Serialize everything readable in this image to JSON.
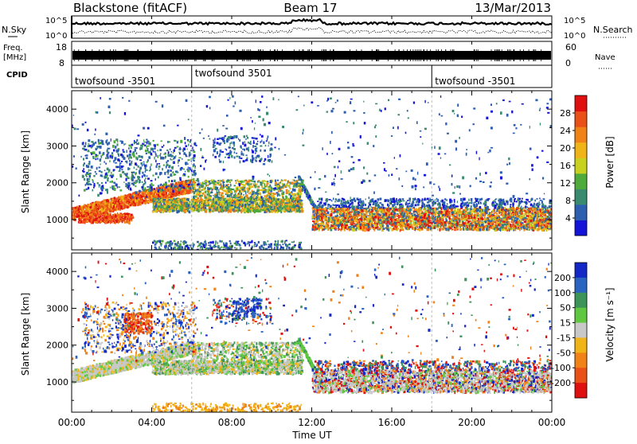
{
  "header": {
    "station": "Blackstone (fitACF)",
    "beam": "Beam 17",
    "date": "13/Mar/2013"
  },
  "strips": {
    "nsky_label": "N.Sky",
    "nsky_ticks": [
      "10^5",
      "10^0"
    ],
    "nsearch_label": "N.Search",
    "nsearch_ticks": [
      "10^5",
      "10^0"
    ],
    "freq_label": "Freq.",
    "freq_unit": "[MHz]",
    "freq_ticks": [
      "18",
      "8"
    ],
    "nave_label": "Nave",
    "nave_ticks": [
      "60",
      "0"
    ],
    "cpid_label": "CPID",
    "cpid_segments": [
      {
        "label": "twofsound -3501",
        "start_h": 0,
        "end_h": 6
      },
      {
        "label": "twofsound 3501",
        "start_h": 6,
        "end_h": 18
      },
      {
        "label": "twofsound -3501",
        "start_h": 18,
        "end_h": 24
      }
    ]
  },
  "chart_data": [
    {
      "type": "heatmap",
      "name": "power",
      "ylabel": "Slant Range [km]",
      "ylim": [
        180,
        4500
      ],
      "yticks": [
        "1000",
        "2000",
        "3000",
        "4000"
      ],
      "colorbar_label": "Power [dB]",
      "colorbar_ticks": [
        "4",
        "8",
        "12",
        "16",
        "20",
        "24",
        "28"
      ],
      "colorbar_colors": [
        "#1414d8",
        "#2c5fb0",
        "#3a8a70",
        "#4faa3c",
        "#c8d020",
        "#f0b418",
        "#f08218",
        "#ea5018",
        "#e01010"
      ],
      "colorbar_range": [
        0,
        32
      ]
    },
    {
      "type": "heatmap",
      "name": "velocity",
      "ylabel": "Slant Range [km]",
      "ylim": [
        180,
        4500
      ],
      "yticks": [
        "1000",
        "2000",
        "3000",
        "4000"
      ],
      "colorbar_label": "Velocity [m s⁻¹]",
      "colorbar_ticks": [
        "200",
        "100",
        "50",
        "15",
        "-15",
        "-50",
        "-100",
        "-200"
      ],
      "colorbar_colors": [
        "#1428c8",
        "#2a64c0",
        "#3c9458",
        "#60c840",
        "#c8c8c8",
        "#f0b418",
        "#f08218",
        "#ea5018",
        "#e01010"
      ]
    }
  ],
  "time_axis": {
    "xlabel": "Time UT",
    "xlim_h": [
      0,
      24
    ],
    "ticks": [
      "00:00",
      "04:00",
      "08:00",
      "12:00",
      "16:00",
      "20:00",
      "00:00"
    ]
  }
}
